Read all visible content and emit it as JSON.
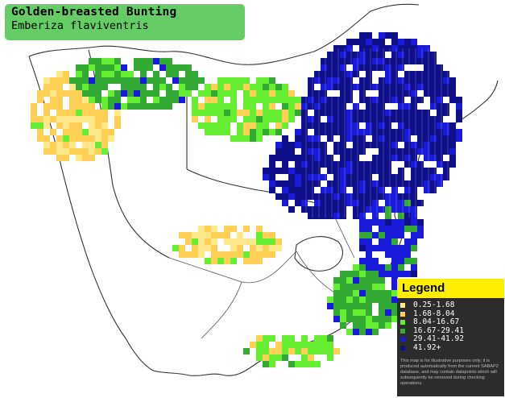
{
  "title": {
    "common_name": "Golden-breasted Bunting",
    "scientific_name": "Emberiza flaviventris"
  },
  "map": {
    "background_color": "#ffffff",
    "border_color": "#333333",
    "grid_line_color": "#ffffff"
  },
  "legend": {
    "title": "Legend",
    "title_bg": "#ffee00",
    "box_bg": "#2c2c2c",
    "items": [
      {
        "label": "0.25-1.68",
        "color": "#ffe88a"
      },
      {
        "label": "1.68-8.04",
        "color": "#ffd055"
      },
      {
        "label": "8.04-16.67",
        "color": "#66ee33"
      },
      {
        "label": "16.67-29.41",
        "color": "#33aa33"
      },
      {
        "label": "29.41-41.92",
        "color": "#1a1adb"
      },
      {
        "label": "41.92+",
        "color": "#0f0f8a"
      }
    ],
    "note": "This map is for illustrative purposes only; it is produced automatically from the current SABAP2 database, and may contain datapoints which will subsequently be removed during checking operations."
  }
}
